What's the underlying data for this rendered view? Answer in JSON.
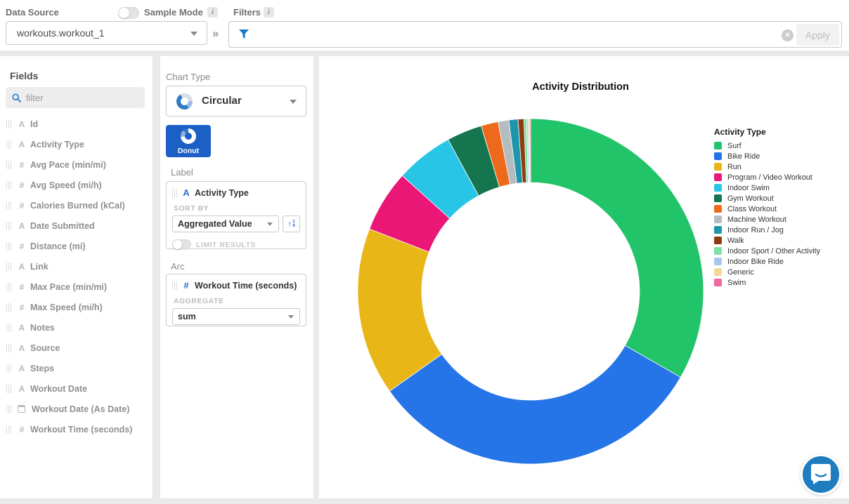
{
  "topbar": {
    "data_source_label": "Data Source",
    "sample_mode_label": "Sample Mode",
    "filters_label": "Filters",
    "info_badge": "i",
    "collapse_glyph": "»",
    "data_source_value": "workouts.workout_1",
    "clear_glyph": "✕",
    "apply_label": "Apply"
  },
  "fields_panel": {
    "title": "Fields",
    "filter_placeholder": "filter",
    "items": [
      {
        "type": "text",
        "label": "Id"
      },
      {
        "type": "text",
        "label": "Activity Type"
      },
      {
        "type": "number",
        "label": "Avg Pace (min/mi)"
      },
      {
        "type": "number",
        "label": "Avg Speed (mi/h)"
      },
      {
        "type": "number",
        "label": "Calories Burned (kCal)"
      },
      {
        "type": "text",
        "label": "Date Submitted"
      },
      {
        "type": "number",
        "label": "Distance (mi)"
      },
      {
        "type": "text",
        "label": "Link"
      },
      {
        "type": "number",
        "label": "Max Pace (min/mi)"
      },
      {
        "type": "number",
        "label": "Max Speed (mi/h)"
      },
      {
        "type": "text",
        "label": "Notes"
      },
      {
        "type": "text",
        "label": "Source"
      },
      {
        "type": "text",
        "label": "Steps"
      },
      {
        "type": "text",
        "label": "Workout Date"
      },
      {
        "type": "date",
        "label": "Workout Date (As Date)"
      },
      {
        "type": "number",
        "label": "Workout Time (seconds)"
      }
    ]
  },
  "settings_panel": {
    "chart_type_label": "Chart Type",
    "chart_type_value": "Circular",
    "donut_tile_label": "Donut",
    "label_section": {
      "title": "Label",
      "field_icon": "A",
      "field_label": "Activity Type",
      "sort_by_label": "SORT BY",
      "sort_by_value": "Aggregated Value",
      "sort_icon_arrow": "↑",
      "sort_icon_digit_top": "1",
      "sort_icon_digit_bottom": "9",
      "limit_results_label": "LIMIT RESULTS"
    },
    "arc_section": {
      "title": "Arc",
      "field_icon": "#",
      "field_label": "Workout Time (seconds)",
      "aggregate_label": "AGGREGATE",
      "aggregate_value": "sum"
    }
  },
  "chart_data": {
    "type": "pie",
    "donut": true,
    "title": "Activity Distribution",
    "legend_title": "Activity Type",
    "legend_position": "right",
    "start_angle_deg": 0,
    "inner_radius_ratio": 0.63,
    "units": "percent",
    "series": [
      {
        "label": "Surf",
        "value": 33.3,
        "color": "#21c468"
      },
      {
        "label": "Bike Ride",
        "value": 31.9,
        "color": "#2574e8"
      },
      {
        "label": "Run",
        "value": 15.7,
        "color": "#e9b617"
      },
      {
        "label": "Program / Video Workout",
        "value": 5.8,
        "color": "#ea1777"
      },
      {
        "label": "Indoor Swim",
        "value": 5.4,
        "color": "#29c5e6"
      },
      {
        "label": "Gym Workout",
        "value": 3.3,
        "color": "#14754f"
      },
      {
        "label": "Class Workout",
        "value": 1.6,
        "color": "#ed6a1d"
      },
      {
        "label": "Machine Workout",
        "value": 1.0,
        "color": "#b5bcbf"
      },
      {
        "label": "Indoor Run / Jog",
        "value": 0.85,
        "color": "#1d96ab"
      },
      {
        "label": "Walk",
        "value": 0.55,
        "color": "#8c3c10"
      },
      {
        "label": "Indoor Sport / Other Activity",
        "value": 0.25,
        "color": "#7de3a4"
      },
      {
        "label": "Indoor Bike Ride",
        "value": 0.15,
        "color": "#a9c6f2"
      },
      {
        "label": "Generic",
        "value": 0.12,
        "color": "#f2d995"
      },
      {
        "label": "Swim",
        "value": 0.1,
        "color": "#f2679e"
      }
    ]
  }
}
